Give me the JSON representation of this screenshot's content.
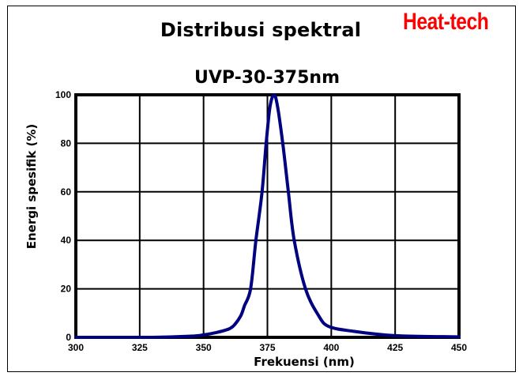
{
  "header": {
    "title": "Distribusi spektral",
    "brand": "Heat-tech",
    "brand_color": "#ff0000",
    "subtitle": "UVP-30-375nm"
  },
  "chart_data": {
    "type": "line",
    "title": "Distribusi spektral",
    "subtitle": "UVP-30-375nm",
    "xlabel": "Frekuensi (nm)",
    "ylabel": "Energi spesifik (%)",
    "xlim": [
      300,
      450
    ],
    "ylim": [
      0,
      100
    ],
    "xticks": [
      300,
      325,
      350,
      375,
      400,
      425,
      450
    ],
    "yticks": [
      0,
      20,
      40,
      60,
      80,
      100
    ],
    "grid": true,
    "legend": null,
    "series": [
      {
        "name": "UVP-30-375nm",
        "color": "#000080",
        "x": [
          300,
          330,
          345,
          350,
          355,
          358,
          360,
          362,
          364.6,
          366,
          368.4,
          370.5,
          372.9,
          374.5,
          376,
          377.6,
          379,
          381,
          383.2,
          385.5,
          389.9,
          395,
          399,
          408.6,
          425,
          450
        ],
        "y": [
          0,
          0,
          0.5,
          1,
          2,
          2.8,
          3.5,
          5,
          9,
          13,
          20,
          40,
          60,
          80,
          95,
          100,
          95,
          80,
          60,
          40,
          20,
          9,
          4.5,
          2.5,
          0.7,
          0.2
        ]
      }
    ]
  }
}
